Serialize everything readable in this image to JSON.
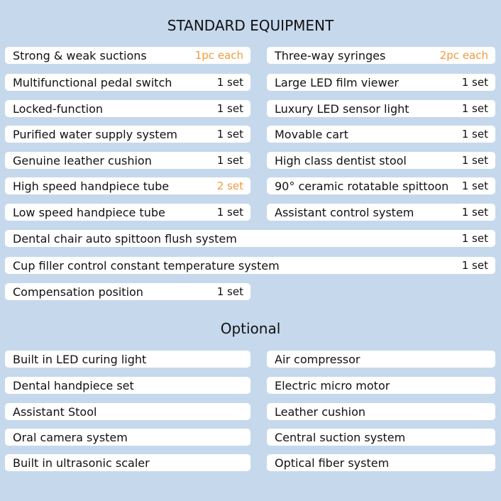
{
  "standard": {
    "title": "STANDARD EQUIPMENT",
    "rows": [
      [
        {
          "name": "Strong & weak suctions",
          "qty": "1pc each",
          "hl": true
        },
        {
          "name": "Three-way syringes",
          "qty": "2pc each",
          "hl": true
        }
      ],
      [
        {
          "name": "Multifunctional pedal switch",
          "qty": "1 set"
        },
        {
          "name": "Large LED film viewer",
          "qty": "1 set"
        }
      ],
      [
        {
          "name": "Locked-function",
          "qty": "1 set"
        },
        {
          "name": "Luxury LED sensor light",
          "qty": "1 set"
        }
      ],
      [
        {
          "name": "Purified water supply system",
          "qty": "1 set"
        },
        {
          "name": "Movable cart",
          "qty": "1 set"
        }
      ],
      [
        {
          "name": "Genuine leather cushion",
          "qty": "1 set"
        },
        {
          "name": "High class dentist stool",
          "qty": "1 set"
        }
      ],
      [
        {
          "name": "High speed handpiece tube",
          "qty": "2 set",
          "hl": true
        },
        {
          "name": "90° ceramic rotatable spittoon",
          "qty": "1 set"
        }
      ],
      [
        {
          "name": "Low speed handpiece tube",
          "qty": "1 set"
        },
        {
          "name": "Assistant control system",
          "qty": "1 set"
        }
      ],
      [
        {
          "name": "Dental chair auto spittoon flush system",
          "qty": "1 set",
          "wide": true
        }
      ],
      [
        {
          "name": "Cup filler control constant temperature system",
          "qty": "1 set",
          "wide": true
        }
      ],
      [
        {
          "name": "Compensation position",
          "qty": "1 set"
        }
      ]
    ]
  },
  "optional": {
    "title": "Optional",
    "rows": [
      [
        "Built in LED curing light",
        "Air compressor"
      ],
      [
        "Dental handpiece set",
        "Electric micro motor"
      ],
      [
        "Assistant Stool",
        "Leather cushion"
      ],
      [
        "Oral camera system",
        "Central suction system"
      ],
      [
        "Built in ultrasonic scaler",
        "Optical fiber system"
      ]
    ]
  },
  "colors": {
    "background": "#c6d8ec",
    "highlight": "#f39a3c"
  }
}
